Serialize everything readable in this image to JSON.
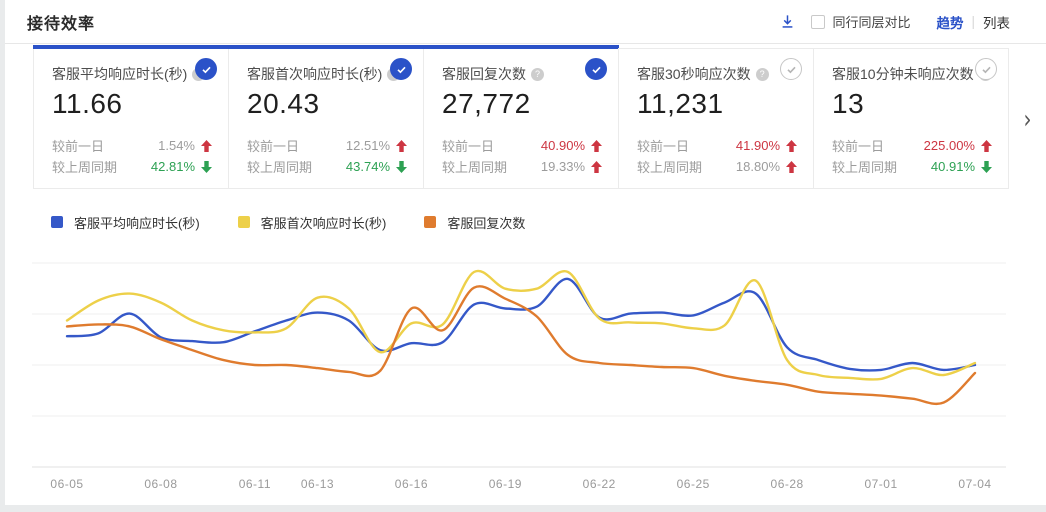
{
  "colors": {
    "accent": "#2b52c8",
    "red": "#cd3642",
    "green": "#2da153",
    "page-bg": "#e9ebec"
  },
  "header": {
    "title": "接待效率",
    "compare_checkbox_label": "同行同层对比",
    "compare_checked": false,
    "view_trend": "趋势",
    "view_sep": "|",
    "view_list": "列表",
    "active_view": "趋势"
  },
  "cards_more_arrow": "›",
  "cards": [
    {
      "title": "客服平均响应时长(秒)",
      "value": "11.66",
      "selected": true,
      "changes": [
        {
          "label": "较前一日",
          "value": "1.54%",
          "direction": "up",
          "color": "gray"
        },
        {
          "label": "较上周同期",
          "value": "42.81%",
          "direction": "down",
          "color": "green"
        }
      ]
    },
    {
      "title": "客服首次响应时长(秒)",
      "value": "20.43",
      "selected": true,
      "changes": [
        {
          "label": "较前一日",
          "value": "12.51%",
          "direction": "up",
          "color": "gray"
        },
        {
          "label": "较上周同期",
          "value": "43.74%",
          "direction": "down",
          "color": "green"
        }
      ]
    },
    {
      "title": "客服回复次数",
      "value": "27,772",
      "selected": true,
      "changes": [
        {
          "label": "较前一日",
          "value": "40.90%",
          "direction": "up",
          "color": "red"
        },
        {
          "label": "较上周同期",
          "value": "19.33%",
          "direction": "up",
          "color": "gray"
        }
      ]
    },
    {
      "title": "客服30秒响应次数",
      "value": "11,231",
      "selected": false,
      "changes": [
        {
          "label": "较前一日",
          "value": "41.90%",
          "direction": "up",
          "color": "red"
        },
        {
          "label": "较上周同期",
          "value": "18.80%",
          "direction": "up",
          "color": "gray"
        }
      ]
    },
    {
      "title": "客服10分钟未响应次数",
      "value": "13",
      "selected": false,
      "changes": [
        {
          "label": "较前一日",
          "value": "225.00%",
          "direction": "up",
          "color": "red"
        },
        {
          "label": "较上周同期",
          "value": "40.91%",
          "direction": "down",
          "color": "green"
        }
      ]
    }
  ],
  "legend": [
    {
      "label": "客服平均响应时长(秒)",
      "color": "#3558c8"
    },
    {
      "label": "客服首次响应时长(秒)",
      "color": "#edd049"
    },
    {
      "label": "客服回复次数",
      "color": "#df7b2e"
    }
  ],
  "chart_data": {
    "type": "line",
    "title": "",
    "xlabel": "",
    "ylabel": "",
    "y_axis_note": "no y-axis tick labels shown; values are relative heights 0-100 of plot area",
    "grid": true,
    "gridline_count": 5,
    "legend_position": "top-left",
    "x_start": "06-05",
    "x_end": "07-04",
    "x_interval": "daily",
    "num_points": 30,
    "x_labels_shown": [
      "06-05",
      "06-08",
      "06-11",
      "06-13",
      "06-16",
      "06-19",
      "06-22",
      "06-25",
      "06-28",
      "07-01",
      "07-04"
    ],
    "x_label_day_index": [
      0,
      3,
      6,
      8,
      11,
      14,
      17,
      20,
      23,
      26,
      29
    ],
    "series": [
      {
        "name": "客服平均响应时长(秒)",
        "color": "#3558c8",
        "values": [
          64.1,
          65.5,
          75.2,
          63.6,
          61.7,
          61.2,
          66.5,
          71.8,
          75.7,
          71.8,
          57.3,
          60.7,
          61.2,
          79.6,
          77.7,
          78.6,
          92.2,
          73.3,
          75.2,
          75.7,
          74.3,
          80.6,
          85.0,
          58.7,
          52.4,
          48.1,
          47.6,
          51.0,
          47.6,
          50.0
        ]
      },
      {
        "name": "客服首次响应时长(秒)",
        "color": "#edd049",
        "values": [
          71.8,
          81.6,
          85.0,
          80.6,
          71.8,
          67.0,
          66.0,
          68.0,
          83.0,
          77.7,
          56.3,
          70.4,
          69.9,
          95.6,
          87.4,
          87.4,
          95.6,
          72.8,
          70.9,
          70.4,
          68.0,
          69.4,
          91.3,
          52.4,
          45.1,
          43.7,
          43.2,
          48.5,
          45.1,
          51.0
        ]
      },
      {
        "name": "客服回复次数",
        "color": "#df7b2e",
        "values": [
          68.9,
          69.9,
          68.9,
          62.6,
          57.3,
          52.4,
          50.0,
          50.0,
          48.5,
          46.6,
          47.1,
          77.7,
          67.0,
          87.9,
          82.5,
          73.8,
          54.9,
          51.0,
          50.0,
          49.0,
          48.5,
          44.7,
          42.2,
          40.3,
          36.9,
          35.9,
          35.0,
          33.5,
          31.6,
          46.1
        ]
      }
    ]
  }
}
